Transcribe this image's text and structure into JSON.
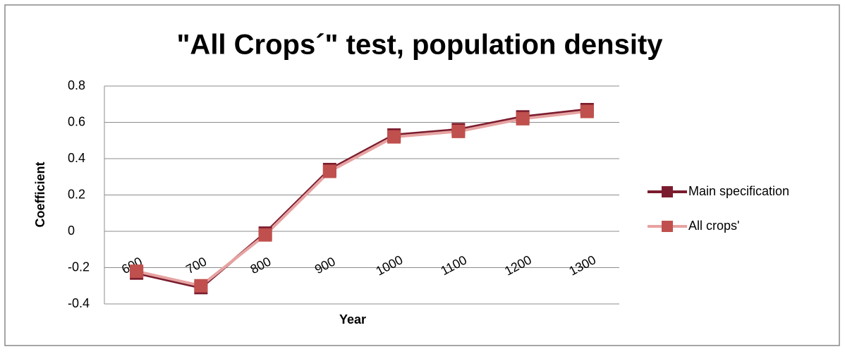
{
  "chart_data": {
    "type": "line",
    "title": "\"All Crops´\" test, population density",
    "x_label": "Year",
    "y_label": "Coefficient",
    "categories": [
      "600",
      "700",
      "800",
      "900",
      "1000",
      "1100",
      "1200",
      "1300"
    ],
    "series": [
      {
        "name": "Main specification",
        "color": "#7b1c2e",
        "line_color": "#7b1c2e",
        "values": [
          -0.23,
          -0.31,
          -0.01,
          0.34,
          0.53,
          0.56,
          0.63,
          0.67
        ]
      },
      {
        "name": "All crops'",
        "color": "#c0504d",
        "line_color": "#e6a3a1",
        "values": [
          -0.22,
          -0.3,
          -0.02,
          0.33,
          0.52,
          0.55,
          0.62,
          0.66
        ]
      }
    ],
    "ylim": [
      -0.4,
      0.8
    ],
    "yticks": [
      -0.4,
      -0.2,
      0,
      0.2,
      0.4,
      0.6,
      0.8
    ],
    "grid": true,
    "legend": "right"
  }
}
